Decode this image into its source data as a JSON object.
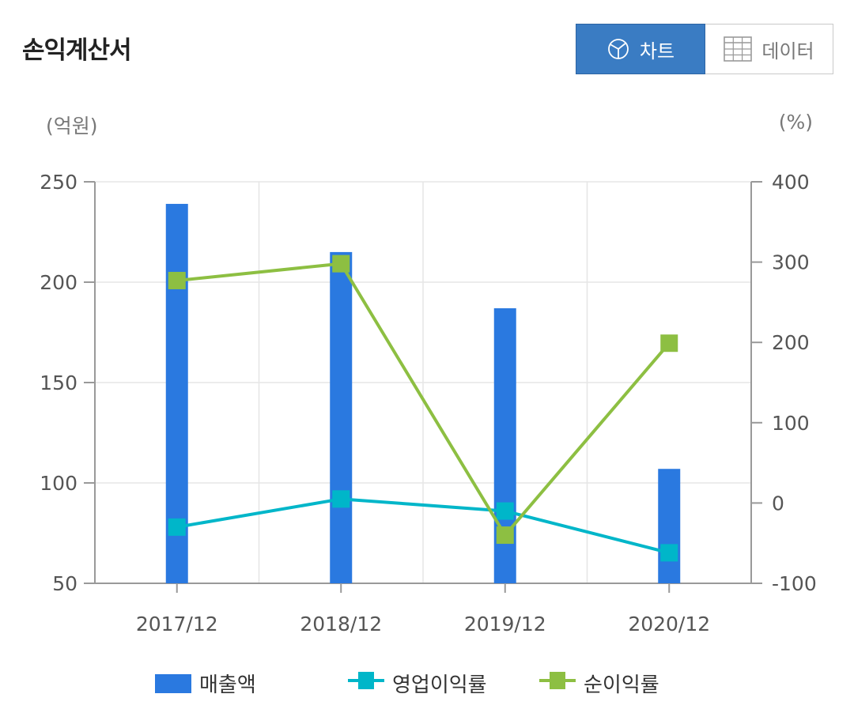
{
  "header": {
    "title": "손익계산서",
    "tab_chart": "차트",
    "tab_data": "데이터",
    "chart_icon": "pie-chart-icon",
    "data_icon": "table-grid-icon"
  },
  "units": {
    "left": "(억원)",
    "right": "(%)"
  },
  "colors": {
    "revenue": "#2a79e0",
    "operating_margin": "#00b6c9",
    "net_margin": "#8dbf42",
    "toggle_active": "#3a7cc3"
  },
  "chart_data": {
    "type": "bar",
    "categories": [
      "2017/12",
      "2018/12",
      "2019/12",
      "2020/12"
    ],
    "series": [
      {
        "name": "매출액",
        "type": "bar",
        "axis": "left",
        "values": [
          239,
          215,
          187,
          107
        ]
      },
      {
        "name": "영업이익률",
        "type": "line",
        "axis": "right",
        "values": [
          -30,
          5,
          -10,
          -62
        ]
      },
      {
        "name": "순이익률",
        "type": "line",
        "axis": "right",
        "values": [
          277,
          298,
          -40,
          199
        ]
      }
    ],
    "y_left": {
      "min": 50,
      "max": 250,
      "ticks": [
        50,
        100,
        150,
        200,
        250
      ],
      "tick_labels": [
        "50",
        "100",
        "150",
        "200",
        "250"
      ]
    },
    "y_right": {
      "min": -100,
      "max": 400,
      "ticks": [
        -100,
        0,
        100,
        200,
        300,
        400
      ],
      "tick_labels": [
        "-100",
        "0",
        "100",
        "200",
        "300",
        "400"
      ]
    },
    "grid": true,
    "legend_position": "bottom"
  }
}
